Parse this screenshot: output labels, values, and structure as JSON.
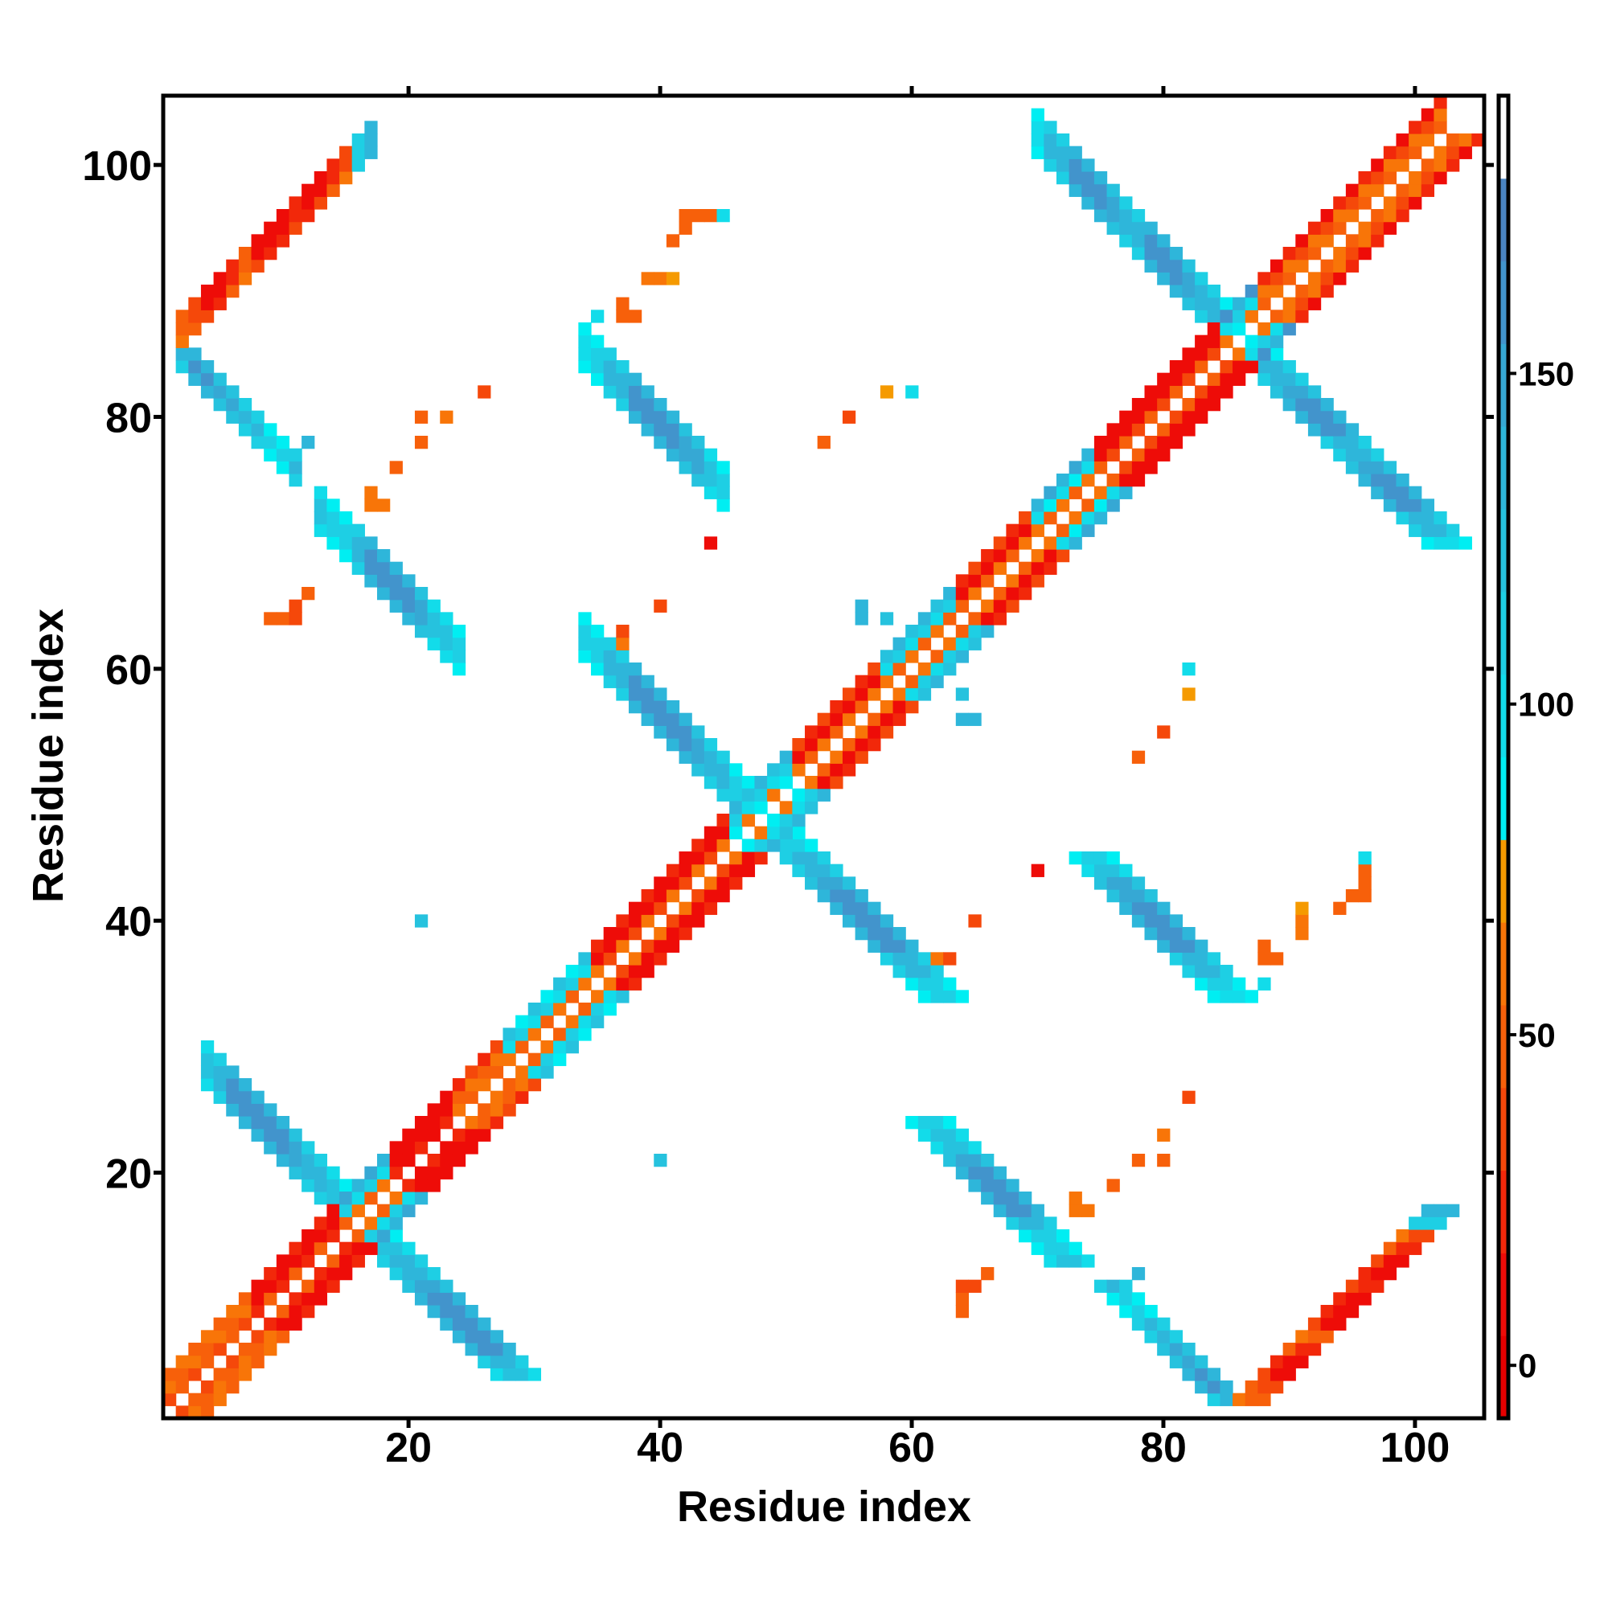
{
  "chart_data": {
    "type": "heatmap",
    "title": "",
    "xlabel": "Residue index",
    "ylabel": "Residue index",
    "xlim": [
      0.5,
      105.5
    ],
    "ylim": [
      0.5,
      105.5
    ],
    "xticks": [
      20,
      40,
      60,
      80,
      100
    ],
    "yticks": [
      20,
      40,
      60,
      80,
      100
    ],
    "xtick_labels": [
      "20",
      "40",
      "60",
      "80",
      "100"
    ],
    "ytick_labels": [
      "20",
      "40",
      "60",
      "80",
      "100"
    ],
    "grid": false,
    "symmetric": true,
    "colorbar": {
      "range": [
        -8,
        192
      ],
      "ticks": [
        0,
        50,
        100,
        150
      ],
      "tick_labels": [
        "0",
        "50",
        "100",
        "150"
      ],
      "placement": "right",
      "bins": [
        {
          "min": -8,
          "color": "#e60000"
        },
        {
          "min": 4.5,
          "color": "#ee0c08"
        },
        {
          "min": 17,
          "color": "#f2280a"
        },
        {
          "min": 29.5,
          "color": "#f5480a"
        },
        {
          "min": 42,
          "color": "#f7600a"
        },
        {
          "min": 54.5,
          "color": "#f87508"
        },
        {
          "min": 67,
          "color": "#f59a00"
        },
        {
          "min": 79.5,
          "color": "#00eef2"
        },
        {
          "min": 92,
          "color": "#12dcea"
        },
        {
          "min": 104.5,
          "color": "#1ecfe4"
        },
        {
          "min": 117,
          "color": "#26c2de"
        },
        {
          "min": 129.5,
          "color": "#2eb6da"
        },
        {
          "min": 142,
          "color": "#36a8d4"
        },
        {
          "min": 154.5,
          "color": "#4294cc"
        },
        {
          "min": 167,
          "color": "#4a84c2"
        },
        {
          "min": 179.5,
          "color": "#ffffff"
        }
      ]
    },
    "diagonal_segments": [
      {
        "from": 1,
        "to": 7,
        "d": [
          50,
          45,
          60
        ],
        "alt": [
          40,
          58,
          48
        ]
      },
      {
        "from": 8,
        "to": 14,
        "d": [
          25,
          10,
          8
        ],
        "alt": [
          45,
          8,
          20
        ]
      },
      {
        "from": 15,
        "to": 18,
        "d": [
          55,
          95,
          130
        ],
        "alt": [
          48,
          110,
          150
        ]
      },
      {
        "from": 19,
        "to": 23,
        "d": [
          10,
          8,
          12
        ],
        "alt": [
          20,
          6,
          10
        ]
      },
      {
        "from": 24,
        "to": 27,
        "d": [
          55,
          50,
          25
        ],
        "alt": [
          45,
          60,
          30
        ]
      },
      {
        "from": 28,
        "to": 34,
        "d": [
          60,
          95,
          120
        ],
        "alt": [
          50,
          110,
          85
        ]
      },
      {
        "from": 35,
        "to": 45,
        "d": [
          40,
          12,
          8
        ],
        "alt": [
          55,
          8,
          20
        ]
      },
      {
        "from": 46,
        "to": 50,
        "d": [
          85,
          110,
          130
        ],
        "alt": [
          55,
          95,
          120
        ]
      },
      {
        "from": 51,
        "to": 57,
        "d": [
          45,
          15,
          25
        ],
        "alt": [
          55,
          10,
          40
        ]
      },
      {
        "from": 58,
        "to": 63,
        "d": [
          55,
          100,
          120
        ],
        "alt": [
          45,
          110,
          135
        ]
      },
      {
        "from": 64,
        "to": 69,
        "d": [
          45,
          15,
          20
        ],
        "alt": [
          60,
          8,
          35
        ]
      },
      {
        "from": 70,
        "to": 74,
        "d": [
          60,
          100,
          130
        ],
        "alt": [
          50,
          85,
          150
        ]
      },
      {
        "from": 75,
        "to": 84,
        "d": [
          30,
          8,
          10
        ],
        "alt": [
          45,
          12,
          6
        ]
      },
      {
        "from": 85,
        "to": 87,
        "d": [
          90,
          110,
          140
        ],
        "alt": [
          55,
          95,
          160
        ]
      },
      {
        "from": 88,
        "to": 102,
        "d": [
          45,
          55,
          20
        ],
        "alt": [
          60,
          40,
          10
        ]
      }
    ],
    "antiparallel_bands": [
      {
        "i_from": 4,
        "i_to": 15,
        "sum_from": 31,
        "sum_to": 34,
        "values": [
          125,
          140,
          155,
          160,
          160,
          155,
          150,
          140,
          120,
          95
        ]
      },
      {
        "i_from": 34,
        "i_to": 47,
        "sum_from": 95,
        "sum_to": 98,
        "values": [
          105,
          110,
          140,
          155,
          160,
          160,
          155,
          150,
          140,
          110,
          90
        ]
      },
      {
        "i_from": 70,
        "i_to": 85,
        "sum_from": 171,
        "sum_to": 174,
        "values": [
          100,
          140,
          155,
          160,
          150,
          140,
          155,
          160,
          150,
          135,
          110
        ]
      },
      {
        "i_from": 13,
        "i_to": 24,
        "sum_from": 84,
        "sum_to": 87,
        "values": [
          120,
          110,
          140,
          160,
          160,
          155,
          150,
          120,
          110
        ]
      },
      {
        "i_from": 34,
        "i_to": 45,
        "sum_from": 118,
        "sum_to": 121,
        "values": [
          100,
          115,
          140,
          155,
          160,
          160,
          155,
          150,
          120,
          110
        ]
      },
      {
        "i_from": 2,
        "i_to": 11,
        "sum_from": 86,
        "sum_to": 88,
        "values": [
          140,
          155,
          150,
          130,
          110,
          130
        ]
      }
    ],
    "parallel_bands": [
      {
        "i_from": 2,
        "i_to": 17,
        "off_from": 84,
        "off_to": 86,
        "values": [
          45,
          30,
          10,
          8,
          25,
          45,
          10,
          8,
          20,
          8,
          10,
          25,
          40,
          110,
          140
        ]
      }
    ],
    "points": [
      [
        26,
        82,
        40
      ],
      [
        21,
        80,
        45
      ],
      [
        23,
        80,
        55
      ],
      [
        21,
        78,
        45
      ],
      [
        19,
        76,
        50
      ],
      [
        12,
        78,
        140
      ],
      [
        9,
        64,
        45
      ],
      [
        10,
        64,
        45
      ],
      [
        11,
        64,
        40
      ],
      [
        11,
        65,
        40
      ],
      [
        12,
        66,
        45
      ],
      [
        17,
        73,
        60
      ],
      [
        17,
        74,
        55
      ],
      [
        18,
        73,
        60
      ],
      [
        21,
        40,
        125
      ],
      [
        40,
        65,
        40
      ],
      [
        44,
        70,
        10
      ],
      [
        37,
        62,
        55
      ],
      [
        37,
        63,
        40
      ],
      [
        35,
        88,
        95
      ],
      [
        37,
        88,
        50
      ],
      [
        38,
        88,
        50
      ],
      [
        37,
        89,
        45
      ],
      [
        39,
        91,
        60
      ],
      [
        40,
        91,
        60
      ],
      [
        41,
        91,
        70
      ],
      [
        41,
        94,
        50
      ],
      [
        42,
        95,
        45
      ],
      [
        42,
        96,
        45
      ],
      [
        43,
        96,
        45
      ],
      [
        44,
        96,
        50
      ],
      [
        45,
        96,
        95
      ],
      [
        53,
        78,
        50
      ],
      [
        55,
        80,
        30
      ],
      [
        58,
        82,
        70
      ],
      [
        60,
        82,
        95
      ],
      [
        56,
        64,
        130
      ],
      [
        58,
        64,
        120
      ],
      [
        56,
        65,
        140
      ]
    ]
  }
}
